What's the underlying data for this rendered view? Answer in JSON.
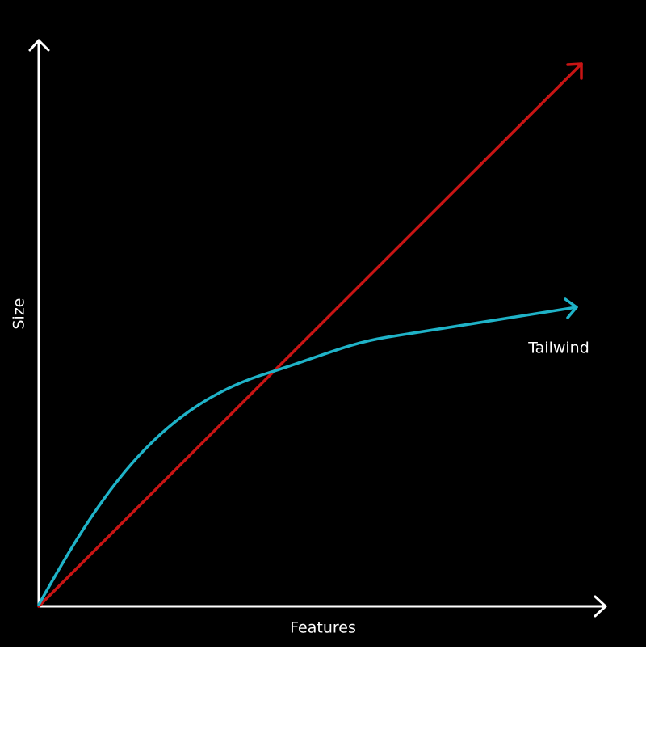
{
  "labels": {
    "y_axis": "Size",
    "x_axis": "Features",
    "curve": "Tailwind"
  }
}
